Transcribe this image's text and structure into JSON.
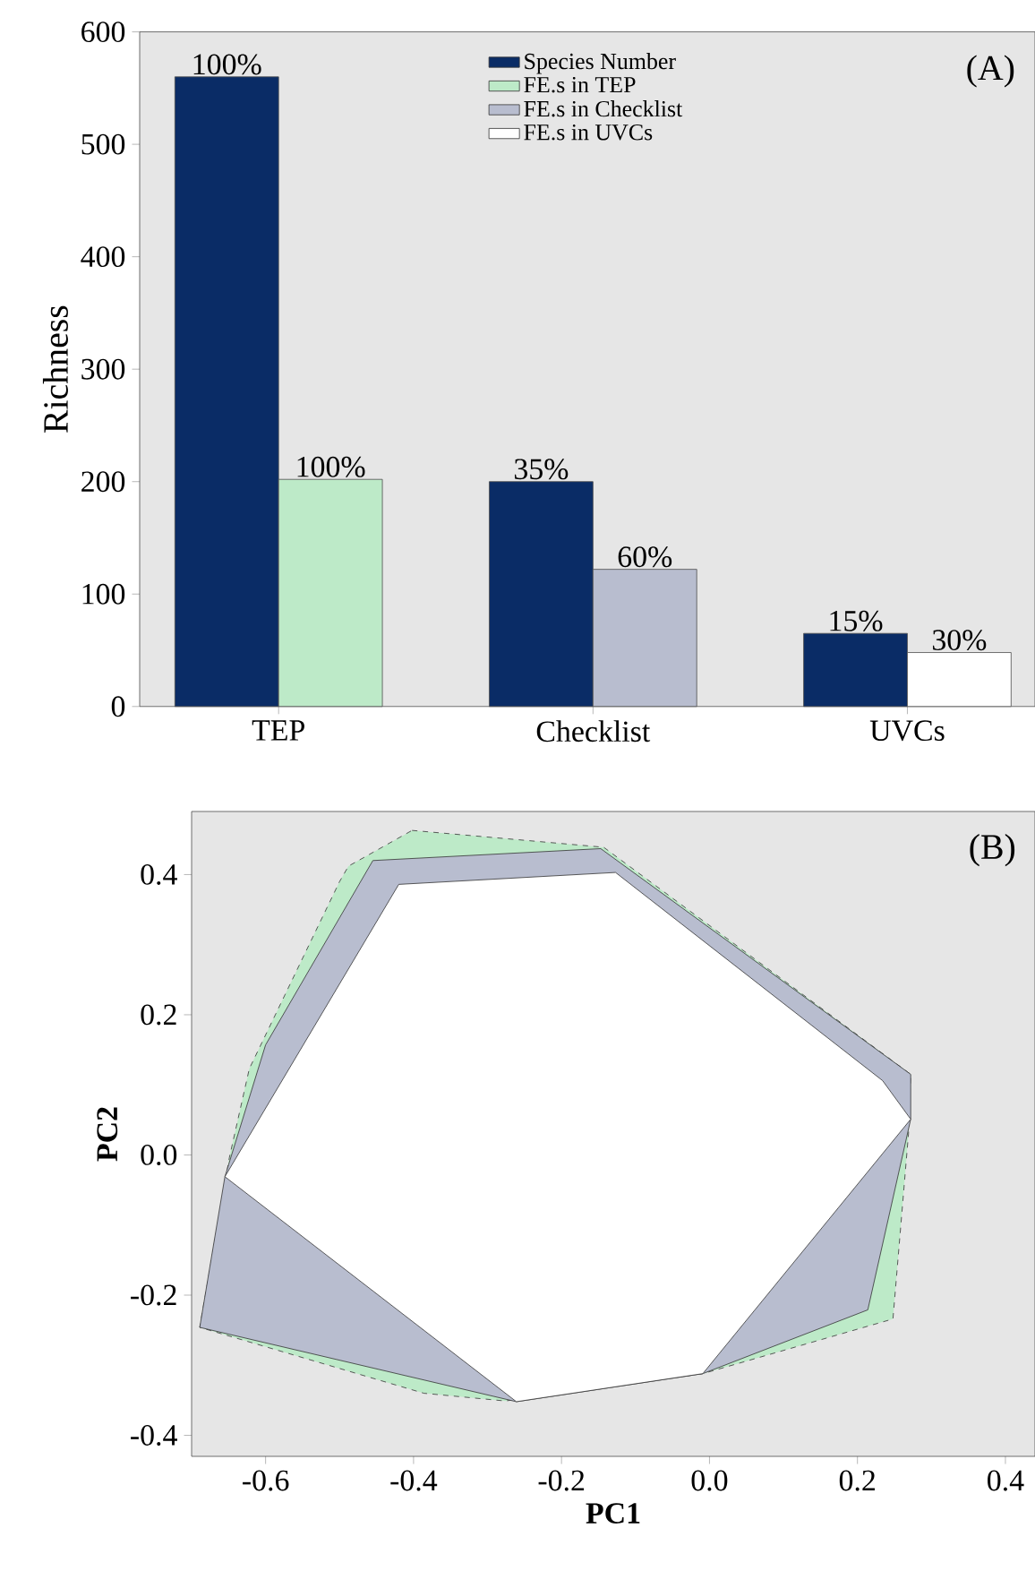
{
  "chart_data": [
    {
      "type": "bar",
      "ylabel": "Richness",
      "categories": [
        "TEP",
        "Checklist",
        "UVCs"
      ],
      "ylim": [
        0,
        600
      ],
      "yticks": [
        0,
        100,
        200,
        300,
        400,
        500,
        600
      ],
      "legend": "top",
      "annotations": [
        "(A)",
        {
          "text": "100%",
          "x": "TEP",
          "y": 560
        },
        {
          "text": "100%",
          "x": "TEP",
          "y": 202
        },
        {
          "text": "35%",
          "x": "Checklist",
          "y": 200
        },
        {
          "text": "60%",
          "x": "Checklist",
          "y": 122
        },
        {
          "text": "15%",
          "x": "UVCs",
          "y": 65
        },
        {
          "text": "30%",
          "x": "UVCs",
          "y": 48
        }
      ],
      "series": [
        {
          "name": "Species Number",
          "color": "#0a2c66",
          "values": [
            560,
            200,
            65
          ]
        },
        {
          "name": "FE.s in TEP",
          "color": "#bdeac8",
          "values": [
            202,
            null,
            null
          ]
        },
        {
          "name": "FE.s in Checklist",
          "color": "#b8bdcf",
          "values": [
            null,
            122,
            null
          ]
        },
        {
          "name": "FE.s in UVCs",
          "color": "#ffffff",
          "values": [
            null,
            null,
            48
          ]
        }
      ]
    },
    {
      "type": "area",
      "xlabel": "PC1",
      "ylabel": "PC2",
      "xlim": [
        -0.7,
        0.44
      ],
      "ylim": [
        -0.43,
        0.49
      ],
      "xticks": [
        -0.6,
        -0.4,
        -0.2,
        {
          "value": 0,
          "label": "0.0"
        },
        0.2,
        0.4
      ],
      "yticks": [
        -0.4,
        -0.2,
        {
          "value": 0,
          "label": "0.0"
        },
        0.2,
        0.4
      ],
      "annotations": [
        "(B)"
      ],
      "series": [
        {
          "color": "#bdeac8",
          "line_style": "dashed",
          "x": [
            -0.402,
            -0.143,
            0.272,
            0.269,
            0.248,
            -0.009,
            -0.276,
            -0.386,
            -0.689,
            -0.649,
            -0.622,
            -0.5,
            -0.488
          ],
          "values": [
            0.463,
            0.439,
            0.115,
            0.03,
            -0.234,
            -0.312,
            -0.351,
            -0.34,
            -0.246,
            -0.004,
            0.123,
            0.39,
            0.412
          ]
        },
        {
          "color": "#b8bdcf",
          "line_style": "solid",
          "x": [
            -0.455,
            -0.147,
            0.272,
            0.272,
            0.214,
            -0.009,
            -0.261,
            -0.689,
            -0.655,
            -0.6
          ],
          "values": [
            0.42,
            0.437,
            0.115,
            0.051,
            -0.221,
            -0.312,
            -0.352,
            -0.246,
            -0.031,
            0.157
          ]
        },
        {
          "color": "#ffffff",
          "line_style": "solid",
          "x": [
            -0.42,
            -0.127,
            0.234,
            0.272,
            -0.009,
            -0.261,
            -0.655
          ],
          "values": [
            0.386,
            0.403,
            0.106,
            0.051,
            -0.312,
            -0.352,
            -0.031
          ]
        }
      ]
    }
  ]
}
